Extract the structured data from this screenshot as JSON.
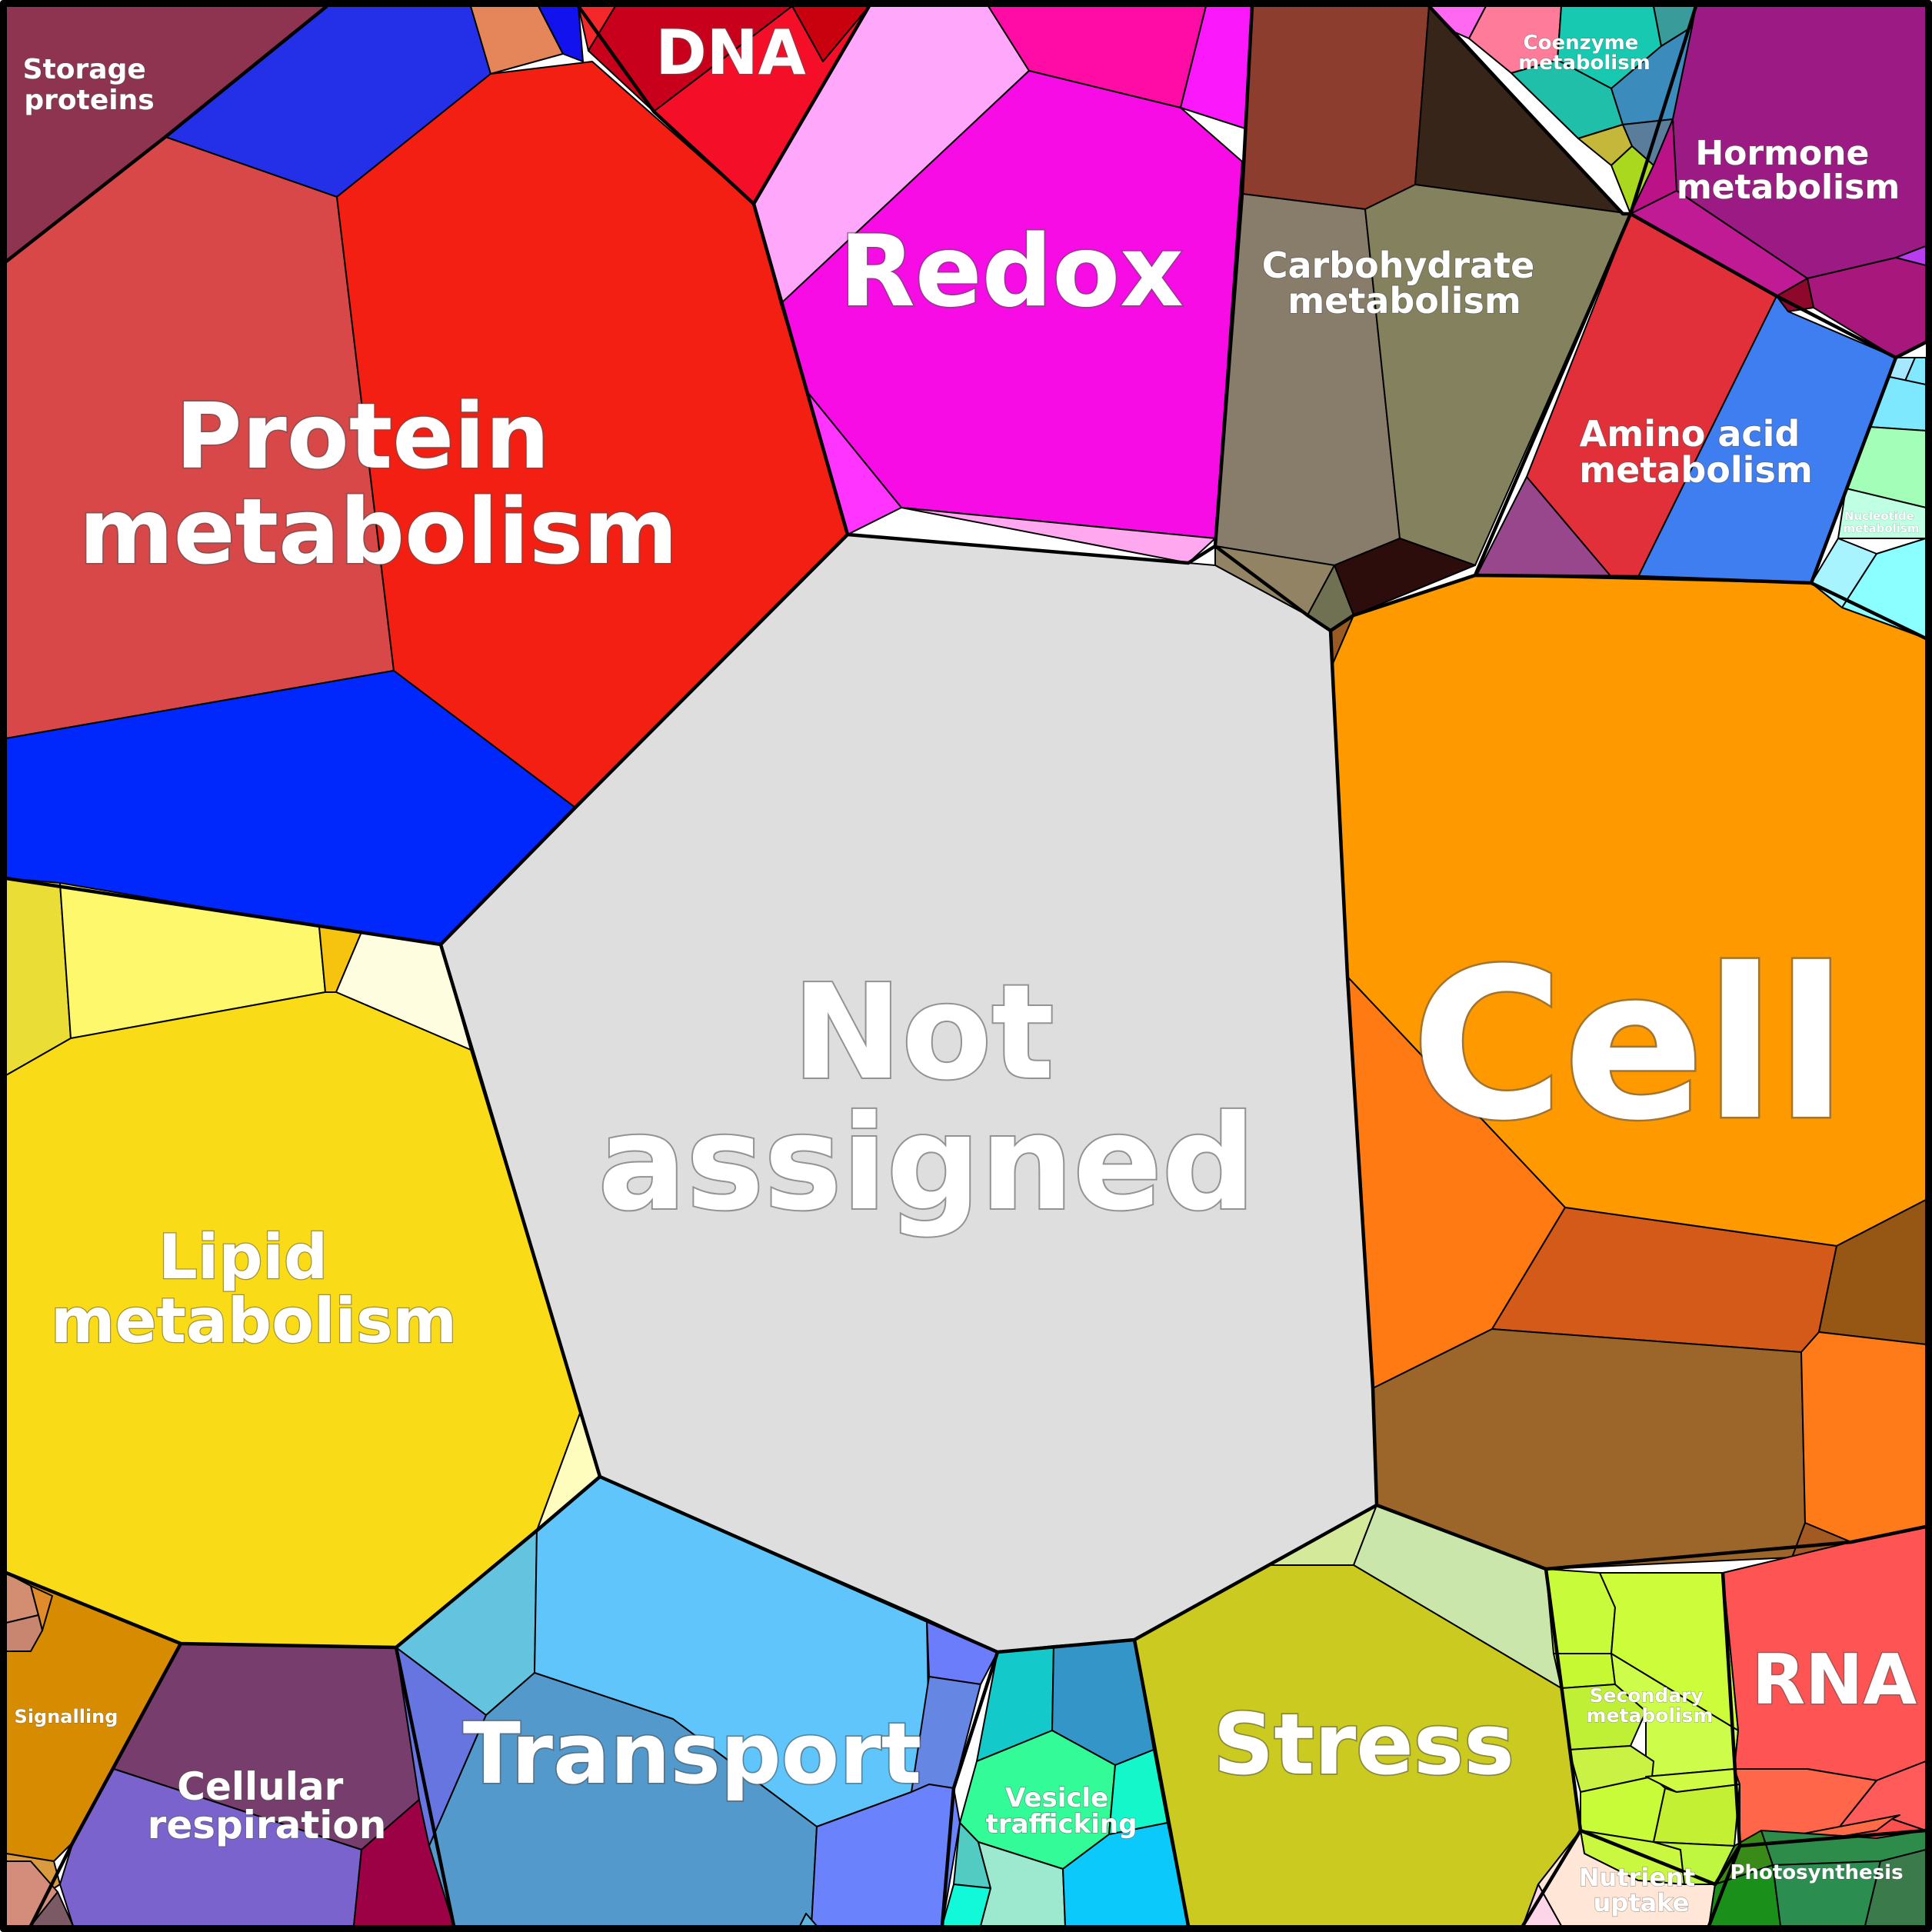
{
  "labels": {
    "storage_proteins": [
      "Storage",
      "proteins"
    ],
    "dna": [
      "DNA"
    ],
    "redox": [
      "Redox"
    ],
    "carbohydrate": [
      "Carbohydrate",
      "metabolism"
    ],
    "coenzyme": [
      "Coenzyme",
      "metabolism"
    ],
    "hormone": [
      "Hormone",
      "metabolism"
    ],
    "protein": [
      "Protein",
      "metabolism"
    ],
    "amino_acid": [
      "Amino acid",
      "metabolism"
    ],
    "nucleotide": [
      "Nucleotide",
      "metabolism"
    ],
    "not_assigned": [
      "Not",
      "assigned"
    ],
    "cell": [
      "Cell"
    ],
    "lipid": [
      "Lipid",
      "metabolism"
    ],
    "signalling": [
      "Signalling"
    ],
    "cellular_respiration": [
      "Cellular",
      "respiration"
    ],
    "transport": [
      "Transport"
    ],
    "vesicle": [
      "Vesicle",
      "trafficking"
    ],
    "stress": [
      "Stress"
    ],
    "secondary": [
      "Secondary",
      "metabolism"
    ],
    "rna": [
      "RNA"
    ],
    "nutrient": [
      "Nutrient",
      "uptake"
    ],
    "photosynthesis": [
      "Photosynthesis"
    ]
  },
  "colors": {
    "storage_proteins": "#8e3350",
    "dna": "#f40e28",
    "redox": "#f70ce6",
    "carbohydrate": "#84825e",
    "coenzyme": "#17c9b0",
    "hormone": "#9b1a83",
    "protein": "#f21f12",
    "amino_acid": "#e2303a",
    "nucleotide": "#8bffff",
    "not_assigned": "#dedede",
    "cell": "#ff9900",
    "lipid": "#fadb18",
    "signalling": "#d68b00",
    "cellular_respiration": "#7b63ce",
    "transport": "#5fc5fb",
    "vesicle": "#33fb98",
    "stress": "#cbca20",
    "secondary": "#cdfd3a",
    "rna": "#fe5454",
    "nutrient": "#ffe6d6",
    "photosynthesis": "#1a8f1a"
  }
}
